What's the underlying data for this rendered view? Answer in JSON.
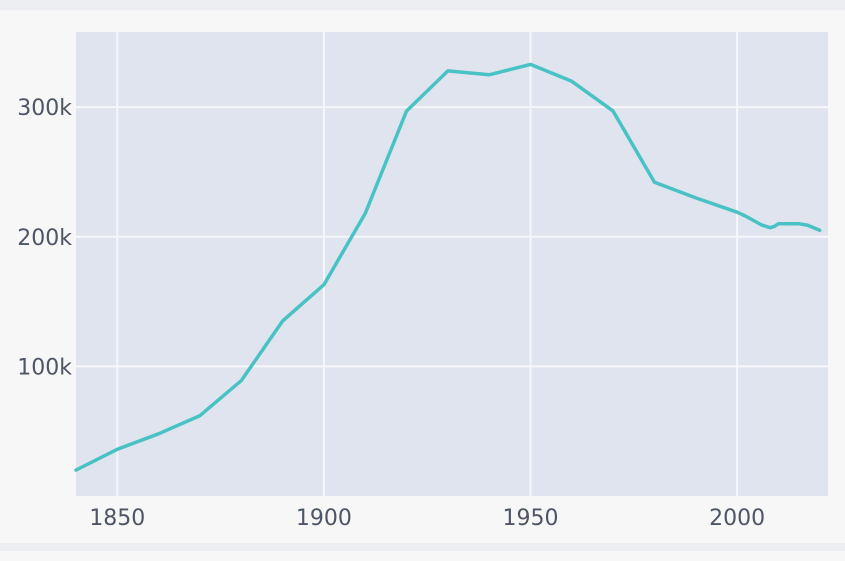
{
  "chart_data": {
    "type": "line",
    "title": "",
    "xlabel": "",
    "ylabel": "",
    "xlim": [
      1840,
      2022
    ],
    "ylim": [
      0,
      358000
    ],
    "x_ticks": [
      1850,
      1900,
      1950,
      2000
    ],
    "x_tick_labels": [
      "1850",
      "1900",
      "1950",
      "2000"
    ],
    "y_ticks": [
      100000,
      200000,
      300000
    ],
    "y_tick_labels": [
      "100k",
      "200k",
      "300k"
    ],
    "grid": true,
    "colors": {
      "plot_bg": "#e0e4ee",
      "grid": "#f6f7fa",
      "line": "#49c2c6",
      "tick_text": "#4d5566"
    },
    "series": [
      {
        "color": "#49c2c6",
        "x": [
          1840,
          1850,
          1860,
          1870,
          1880,
          1890,
          1900,
          1910,
          1920,
          1930,
          1940,
          1950,
          1960,
          1970,
          1980,
          1990,
          2000,
          2002,
          2006,
          2008,
          2009,
          2010,
          2013,
          2015,
          2017,
          2020
        ],
        "y": [
          20000,
          36000,
          48000,
          62000,
          89000,
          135000,
          163000,
          218000,
          297000,
          328000,
          325000,
          333000,
          320000,
          297000,
          242000,
          230000,
          219000,
          216000,
          209000,
          207000,
          208000,
          210000,
          210000,
          210000,
          209000,
          205000
        ]
      }
    ]
  }
}
